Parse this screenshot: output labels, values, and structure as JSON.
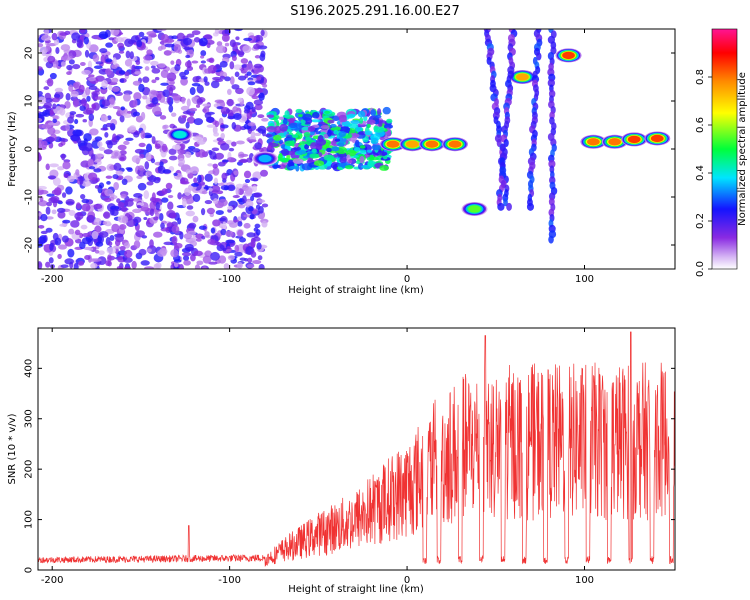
{
  "title": "S196.2025.291.16.00.E27",
  "spectrogram": {
    "type": "heatmap",
    "xlabel": "Height of straight line (km)",
    "ylabel": "Frequency (Hz)",
    "xlim": [
      -208,
      151
    ],
    "ylim": [
      -25,
      25
    ],
    "xticks": [
      -200,
      -100,
      0,
      100
    ],
    "yticks": [
      -20,
      -10,
      0,
      10,
      20
    ],
    "colorbar": {
      "label": "Normalized spectral amplitude",
      "range": [
        0,
        1
      ],
      "ticks": [
        "0.0",
        "0.2",
        "0.4",
        "0.6",
        "0.8"
      ],
      "colors": [
        "#ffffff",
        "#d6b6f4",
        "#8a2be2",
        "#1414ff",
        "#00e5ff",
        "#00ff3a",
        "#ffff00",
        "#ff8c00",
        "#ff0000",
        "#ff1493"
      ]
    },
    "features": [
      {
        "kind": "noise",
        "x_range": [
          -208,
          -80
        ],
        "f_range": [
          -25,
          25
        ],
        "amplitude": 0.15
      },
      {
        "kind": "band",
        "x_range": [
          -78,
          -10
        ],
        "f_center": 2,
        "f_width": 6,
        "amplitude": 0.35
      },
      {
        "kind": "blob",
        "x": -128,
        "f": 3,
        "amplitude": 0.4
      },
      {
        "kind": "blob",
        "x": -80,
        "f": -2,
        "amplitude": 0.35
      },
      {
        "kind": "blob",
        "x": -8,
        "f": 1,
        "amplitude": 0.8
      },
      {
        "kind": "blob",
        "x": 3,
        "f": 1,
        "amplitude": 0.75
      },
      {
        "kind": "blob",
        "x": 14,
        "f": 1,
        "amplitude": 0.8
      },
      {
        "kind": "blob",
        "x": 27,
        "f": 1,
        "amplitude": 0.8
      },
      {
        "kind": "blob",
        "x": 38,
        "f": -12.5,
        "amplitude": 0.55
      },
      {
        "kind": "blob",
        "x": 65,
        "f": 15,
        "amplitude": 0.75
      },
      {
        "kind": "blob",
        "x": 91,
        "f": 19.5,
        "amplitude": 0.85
      },
      {
        "kind": "blob",
        "x": 105,
        "f": 1.5,
        "amplitude": 0.8
      },
      {
        "kind": "blob",
        "x": 117,
        "f": 1.5,
        "amplitude": 0.8
      },
      {
        "kind": "blob",
        "x": 128,
        "f": 2,
        "amplitude": 0.85
      },
      {
        "kind": "blob",
        "x": 141,
        "f": 2.2,
        "amplitude": 0.85
      },
      {
        "kind": "streak",
        "x_from": 45,
        "x_to": 57,
        "f_from": 25,
        "f_to": -13
      },
      {
        "kind": "streak",
        "x_from": 60,
        "x_to": 52,
        "f_from": 25,
        "f_to": -13
      },
      {
        "kind": "streak",
        "x_from": 74,
        "x_to": 69,
        "f_from": 25,
        "f_to": -13
      },
      {
        "kind": "streak",
        "x_from": 82,
        "x_to": 82,
        "f_from": 25,
        "f_to": -20
      }
    ]
  },
  "snr": {
    "type": "line",
    "xlabel": "Height of straight line (km)",
    "ylabel": "SNR (10 * v/v)",
    "xlim": [
      -208,
      151
    ],
    "ylim": [
      0,
      480
    ],
    "xticks": [
      -200,
      -100,
      0,
      100
    ],
    "yticks": [
      0,
      100,
      200,
      300,
      400
    ],
    "color": "#f03232",
    "envelope": [
      {
        "x": -208,
        "y": 25
      },
      {
        "x": -125,
        "y": 28
      },
      {
        "x": -80,
        "y": 30
      },
      {
        "x": -70,
        "y": 60
      },
      {
        "x": -50,
        "y": 110
      },
      {
        "x": -30,
        "y": 150
      },
      {
        "x": -15,
        "y": 200
      },
      {
        "x": 0,
        "y": 250
      },
      {
        "x": 15,
        "y": 320
      },
      {
        "x": 30,
        "y": 370
      },
      {
        "x": 45,
        "y": 390
      },
      {
        "x": 151,
        "y": 395
      }
    ],
    "dropouts_x": [
      10,
      18,
      30,
      42,
      54,
      66,
      78,
      90,
      102,
      114,
      126,
      138,
      149
    ],
    "dropout_level": 20,
    "spikes": [
      {
        "x": -123,
        "y": 88
      },
      {
        "x": 44,
        "y": 465
      },
      {
        "x": 126,
        "y": 472
      }
    ]
  }
}
